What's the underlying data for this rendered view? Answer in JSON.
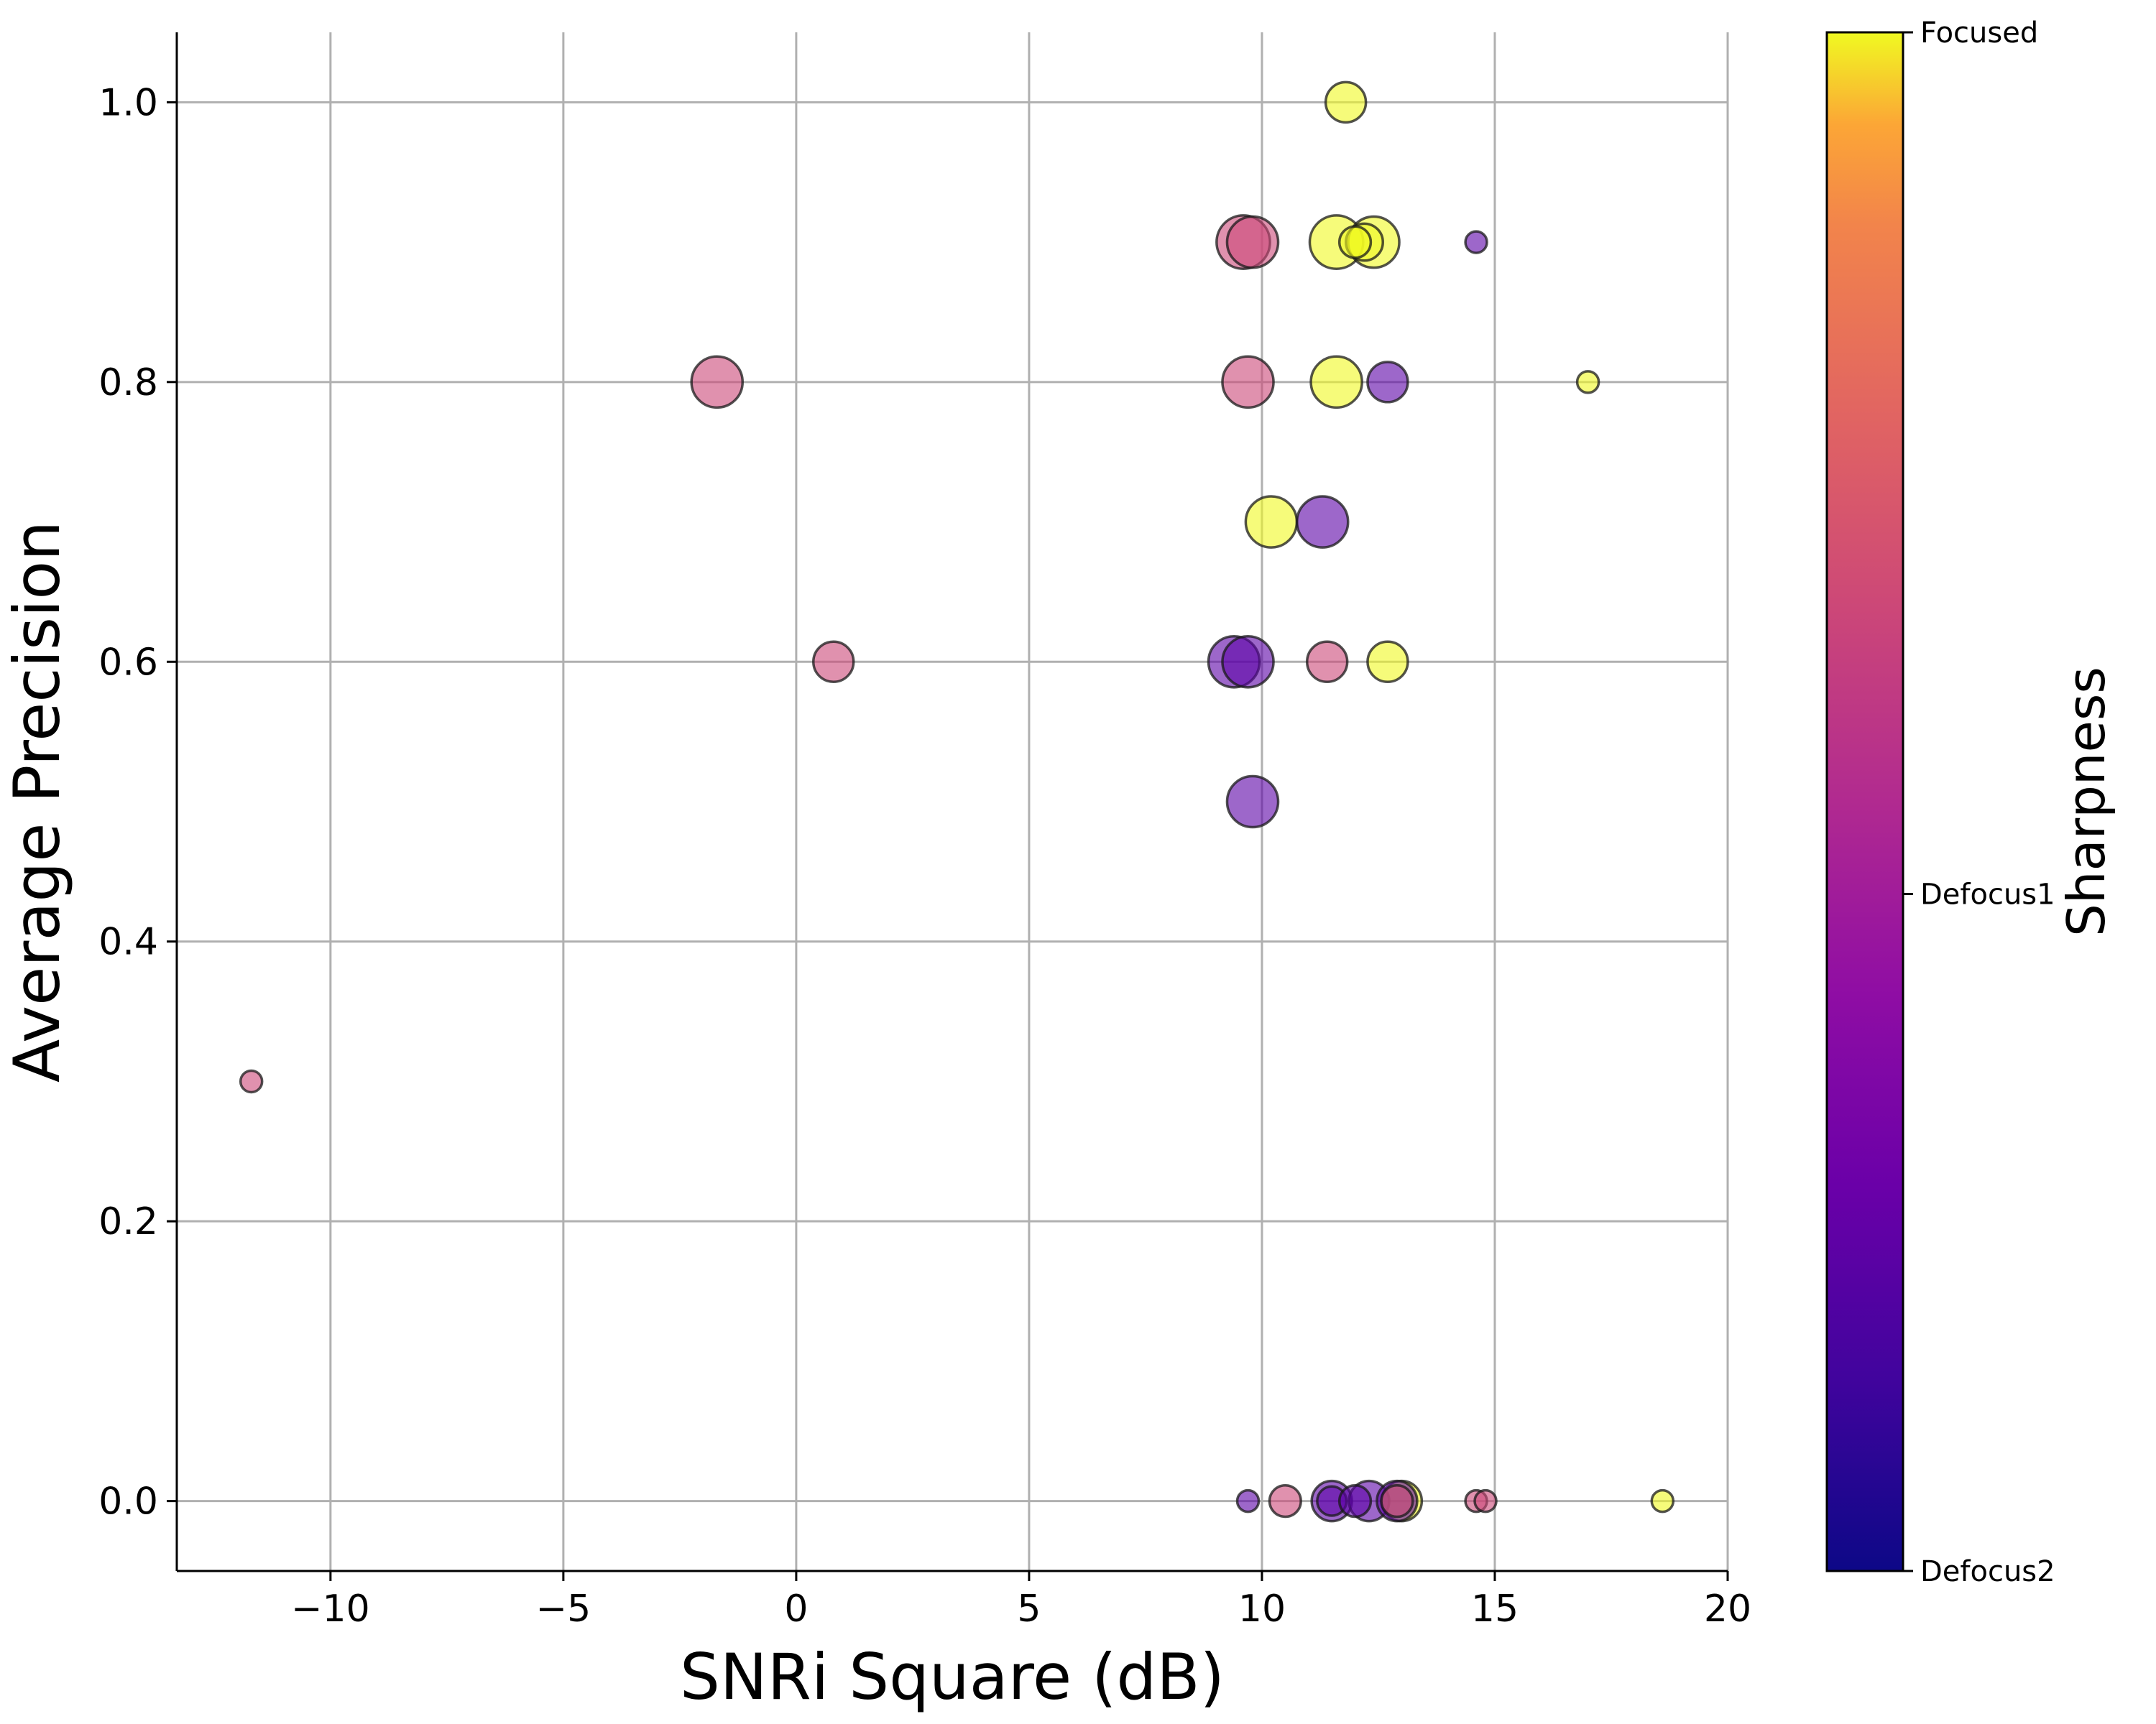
{
  "chart_data": {
    "type": "scatter",
    "xlabel": "SNRi Square (dB)",
    "ylabel": "Average Precision",
    "xlim": [
      -13.3,
      20
    ],
    "ylim": [
      -0.05,
      1.05
    ],
    "x_ticks": [
      {
        "value": -10,
        "label": "−10"
      },
      {
        "value": -5,
        "label": "−5"
      },
      {
        "value": 0,
        "label": "0"
      },
      {
        "value": 5,
        "label": "5"
      },
      {
        "value": 10,
        "label": "10"
      },
      {
        "value": 15,
        "label": "15"
      },
      {
        "value": 20,
        "label": "20"
      }
    ],
    "y_ticks": [
      {
        "value": 0.0,
        "label": "0.0"
      },
      {
        "value": 0.2,
        "label": "0.2"
      },
      {
        "value": 0.4,
        "label": "0.4"
      },
      {
        "value": 0.6,
        "label": "0.6"
      },
      {
        "value": 0.8,
        "label": "0.8"
      },
      {
        "value": 1.0,
        "label": "1.0"
      }
    ],
    "grid": true,
    "marker_alpha": 0.6,
    "colorbar": {
      "title": "Sharpness",
      "colormap": "plasma",
      "ticks": [
        {
          "value": 1.0,
          "label": "Focused"
        },
        {
          "value": 0.44,
          "label": "Defocus1"
        },
        {
          "value": 0.0,
          "label": "Defocus2"
        }
      ]
    },
    "colors": {
      "Focused": "#f0f921",
      "Defocus1": "#cc4778",
      "Defocus2": "#5c01a6"
    },
    "points": [
      {
        "x": 11.8,
        "y": 1.0,
        "size": 12,
        "sharpness": "Focused"
      },
      {
        "x": 9.6,
        "y": 0.9,
        "size": 22,
        "sharpness": "Defocus1"
      },
      {
        "x": 9.8,
        "y": 0.9,
        "size": 20,
        "sharpness": "Defocus1"
      },
      {
        "x": 11.6,
        "y": 0.9,
        "size": 22,
        "sharpness": "Focused"
      },
      {
        "x": 12.4,
        "y": 0.9,
        "size": 20,
        "sharpness": "Focused"
      },
      {
        "x": 12.2,
        "y": 0.9,
        "size": 10,
        "sharpness": "Focused"
      },
      {
        "x": 12.0,
        "y": 0.9,
        "size": 7,
        "sharpness": "Focused"
      },
      {
        "x": 14.6,
        "y": 0.9,
        "size": 3,
        "sharpness": "Defocus2"
      },
      {
        "x": -1.7,
        "y": 0.8,
        "size": 20,
        "sharpness": "Defocus1"
      },
      {
        "x": 9.7,
        "y": 0.8,
        "size": 20,
        "sharpness": "Defocus1"
      },
      {
        "x": 11.6,
        "y": 0.8,
        "size": 20,
        "sharpness": "Focused"
      },
      {
        "x": 12.7,
        "y": 0.8,
        "size": 12,
        "sharpness": "Defocus2"
      },
      {
        "x": 17.0,
        "y": 0.8,
        "size": 3,
        "sharpness": "Focused"
      },
      {
        "x": 10.2,
        "y": 0.7,
        "size": 20,
        "sharpness": "Focused"
      },
      {
        "x": 11.3,
        "y": 0.7,
        "size": 20,
        "sharpness": "Defocus2"
      },
      {
        "x": 0.8,
        "y": 0.6,
        "size": 12,
        "sharpness": "Defocus1"
      },
      {
        "x": 9.4,
        "y": 0.6,
        "size": 20,
        "sharpness": "Defocus2"
      },
      {
        "x": 9.7,
        "y": 0.6,
        "size": 20,
        "sharpness": "Defocus2"
      },
      {
        "x": 11.4,
        "y": 0.6,
        "size": 12,
        "sharpness": "Defocus1"
      },
      {
        "x": 12.7,
        "y": 0.6,
        "size": 12,
        "sharpness": "Focused"
      },
      {
        "x": 9.8,
        "y": 0.5,
        "size": 20,
        "sharpness": "Defocus2"
      },
      {
        "x": -11.7,
        "y": 0.3,
        "size": 3,
        "sharpness": "Defocus1"
      },
      {
        "x": 9.7,
        "y": 0.0,
        "size": 3,
        "sharpness": "Defocus2"
      },
      {
        "x": 10.5,
        "y": 0.0,
        "size": 7,
        "sharpness": "Defocus1"
      },
      {
        "x": 11.5,
        "y": 0.0,
        "size": 12,
        "sharpness": "Defocus2"
      },
      {
        "x": 11.5,
        "y": 0.0,
        "size": 6,
        "sharpness": "Defocus2"
      },
      {
        "x": 12.3,
        "y": 0.0,
        "size": 12,
        "sharpness": "Defocus2"
      },
      {
        "x": 12.0,
        "y": 0.0,
        "size": 7,
        "sharpness": "Defocus2"
      },
      {
        "x": 13.0,
        "y": 0.0,
        "size": 12,
        "sharpness": "Focused"
      },
      {
        "x": 12.9,
        "y": 0.0,
        "size": 12,
        "sharpness": "Defocus2"
      },
      {
        "x": 12.9,
        "y": 0.0,
        "size": 7,
        "sharpness": "Defocus1"
      },
      {
        "x": 14.6,
        "y": 0.0,
        "size": 3,
        "sharpness": "Defocus1"
      },
      {
        "x": 14.8,
        "y": 0.0,
        "size": 3,
        "sharpness": "Defocus1"
      },
      {
        "x": 18.6,
        "y": 0.0,
        "size": 3,
        "sharpness": "Focused"
      }
    ]
  }
}
